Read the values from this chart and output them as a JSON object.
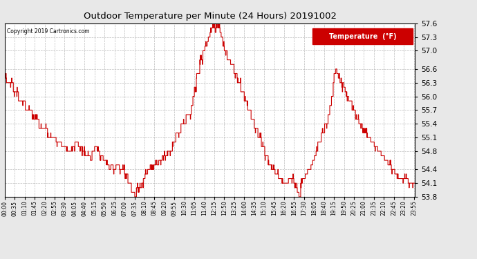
{
  "title": "Outdoor Temperature per Minute (24 Hours) 20191002",
  "copyright_text": "Copyright 2019 Cartronics.com",
  "legend_label": "Temperature  (°F)",
  "line_color": "#cc0000",
  "background_color": "#e8e8e8",
  "plot_bg_color": "#ffffff",
  "grid_color": "#bbbbbb",
  "y_min": 53.8,
  "y_max": 57.6,
  "y_ticks": [
    53.8,
    54.1,
    54.4,
    54.8,
    55.1,
    55.4,
    55.7,
    56.0,
    56.3,
    56.6,
    57.0,
    57.3,
    57.6
  ],
  "x_tick_labels": [
    "00:00",
    "00:35",
    "01:10",
    "01:45",
    "02:20",
    "02:55",
    "03:30",
    "04:05",
    "04:40",
    "05:15",
    "05:50",
    "06:25",
    "07:00",
    "07:35",
    "08:10",
    "08:45",
    "09:20",
    "09:55",
    "10:30",
    "11:05",
    "11:40",
    "12:15",
    "12:50",
    "13:25",
    "14:00",
    "14:35",
    "15:10",
    "15:45",
    "16:20",
    "16:55",
    "17:30",
    "18:05",
    "18:40",
    "19:15",
    "19:50",
    "20:25",
    "21:00",
    "21:35",
    "22:10",
    "22:45",
    "23:20",
    "23:55"
  ],
  "num_minutes": 1440
}
